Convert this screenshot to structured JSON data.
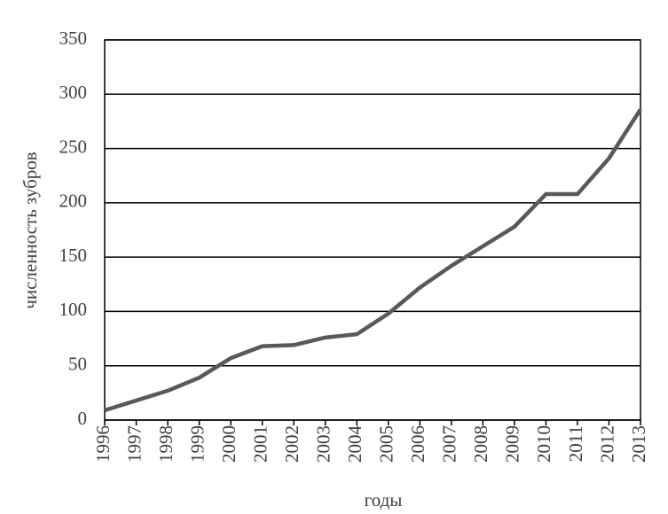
{
  "chart_data": {
    "type": "line",
    "y_label": "численность зубров",
    "x_label": "годы",
    "x": [
      1996,
      1997,
      1998,
      1999,
      2000,
      2001,
      2002,
      2003,
      2004,
      2005,
      2006,
      2007,
      2008,
      2009,
      2010,
      2011,
      2012,
      2013
    ],
    "values": [
      9,
      18,
      27,
      39,
      57,
      68,
      69,
      76,
      79,
      98,
      122,
      142,
      160,
      178,
      208,
      208,
      241,
      286
    ],
    "color": "#595959",
    "xlim": [
      1996,
      2013
    ],
    "xticks": [
      1996,
      1997,
      1998,
      1999,
      2000,
      2001,
      2002,
      2003,
      2004,
      2005,
      2006,
      2007,
      2008,
      2009,
      2010,
      2011,
      2012,
      2013
    ],
    "ylim": [
      0,
      350
    ],
    "yticks": [
      0,
      50,
      100,
      150,
      200,
      250,
      300,
      350
    ],
    "grid": true
  }
}
